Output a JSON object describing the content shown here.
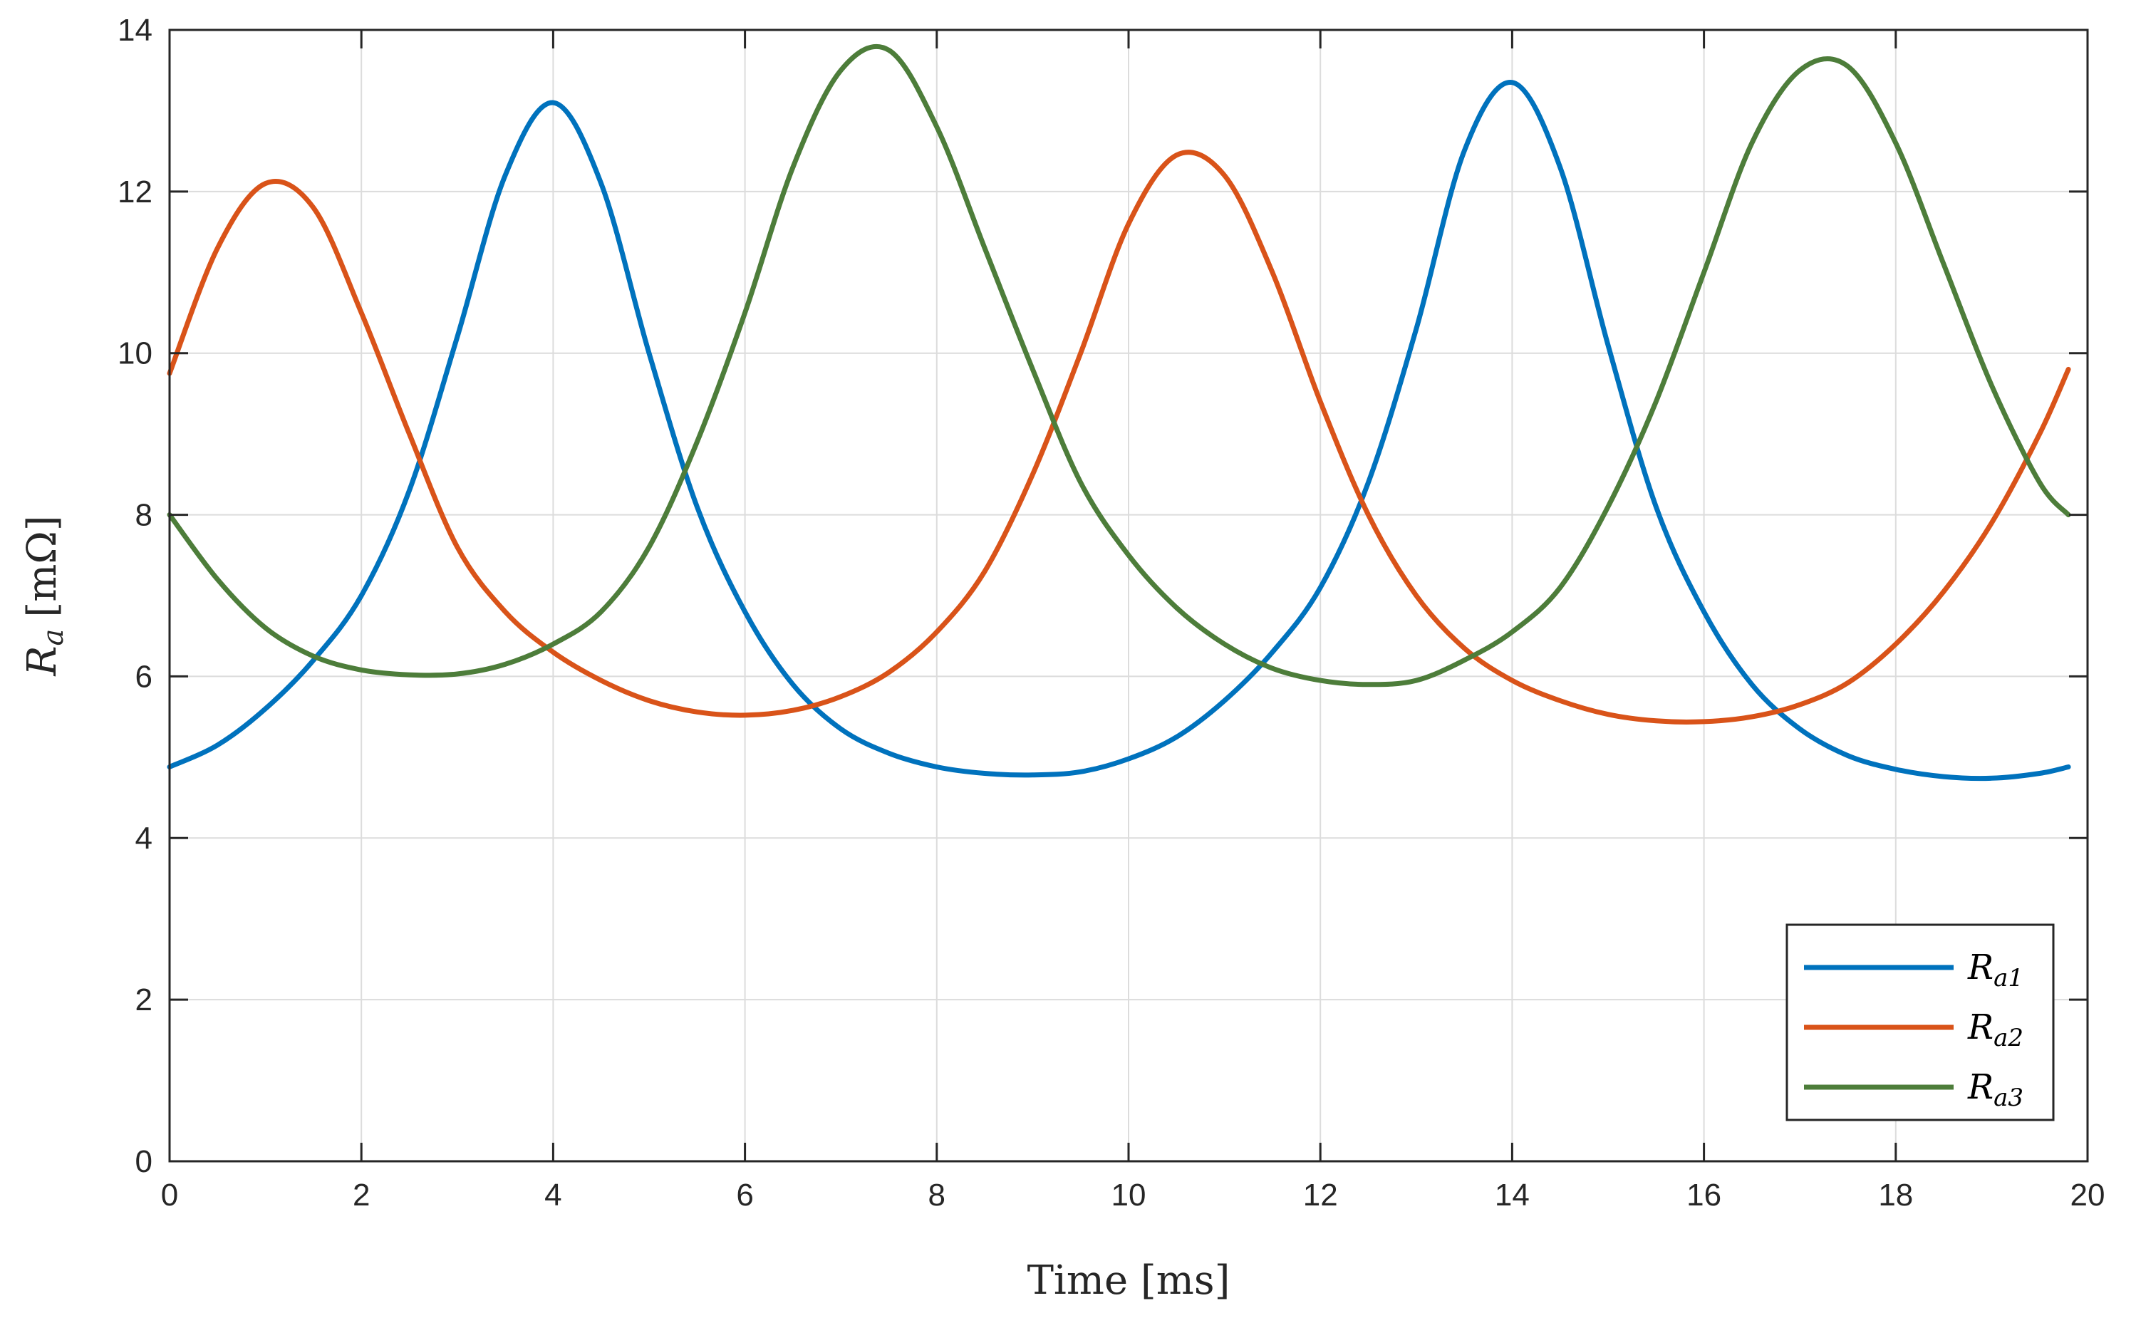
{
  "chart_data": {
    "type": "line",
    "title": "",
    "xlabel": "Time [ms]",
    "ylabel_main": "R",
    "ylabel_sub": "a",
    "ylabel_unit": "[mΩ]",
    "xlim": [
      0,
      20
    ],
    "ylim": [
      0,
      14
    ],
    "xticks": [
      0,
      2,
      4,
      6,
      8,
      10,
      12,
      14,
      16,
      18,
      20
    ],
    "yticks": [
      0,
      2,
      4,
      6,
      8,
      10,
      12,
      14
    ],
    "grid": true,
    "legend_position": "bottom-right",
    "x": [
      0,
      0.5,
      1.0,
      1.5,
      2.0,
      2.5,
      3.0,
      3.5,
      4.0,
      4.5,
      5.0,
      5.5,
      6.0,
      6.5,
      7.0,
      7.5,
      8.0,
      8.5,
      9.0,
      9.5,
      10.0,
      10.5,
      11.0,
      11.5,
      12.0,
      12.5,
      13.0,
      13.5,
      14.0,
      14.5,
      15.0,
      15.5,
      16.0,
      16.5,
      17.0,
      17.5,
      18.0,
      18.5,
      19.0,
      19.5,
      19.8
    ],
    "series": [
      {
        "name": "R",
        "sub": "a1",
        "color": "#0072BD",
        "values": [
          4.88,
          5.15,
          5.6,
          6.2,
          7.0,
          8.3,
          10.2,
          12.2,
          13.1,
          12.1,
          10.0,
          8.1,
          6.8,
          5.9,
          5.35,
          5.05,
          4.88,
          4.8,
          4.78,
          4.82,
          4.98,
          5.25,
          5.7,
          6.3,
          7.1,
          8.4,
          10.3,
          12.5,
          13.35,
          12.3,
          10.1,
          8.1,
          6.8,
          5.9,
          5.35,
          5.02,
          4.85,
          4.76,
          4.74,
          4.8,
          4.88
        ]
      },
      {
        "name": "R",
        "sub": "a2",
        "color": "#D95319",
        "values": [
          9.75,
          11.3,
          12.1,
          11.8,
          10.5,
          9.0,
          7.6,
          6.8,
          6.3,
          5.95,
          5.7,
          5.56,
          5.52,
          5.58,
          5.75,
          6.05,
          6.55,
          7.3,
          8.5,
          10.0,
          11.6,
          12.45,
          12.2,
          11.0,
          9.4,
          8.0,
          7.0,
          6.35,
          5.95,
          5.7,
          5.53,
          5.45,
          5.44,
          5.5,
          5.65,
          5.92,
          6.4,
          7.05,
          7.9,
          9.0,
          9.8
        ]
      },
      {
        "name": "R",
        "sub": "a3",
        "color": "#4D7D3A",
        "values": [
          8.0,
          7.2,
          6.6,
          6.25,
          6.08,
          6.02,
          6.03,
          6.15,
          6.4,
          6.8,
          7.6,
          8.9,
          10.5,
          12.3,
          13.5,
          13.75,
          12.8,
          11.3,
          9.8,
          8.4,
          7.5,
          6.85,
          6.4,
          6.1,
          5.95,
          5.9,
          5.95,
          6.2,
          6.55,
          7.1,
          8.1,
          9.4,
          11.0,
          12.6,
          13.5,
          13.55,
          12.6,
          11.1,
          9.6,
          8.4,
          8.0
        ]
      }
    ]
  }
}
